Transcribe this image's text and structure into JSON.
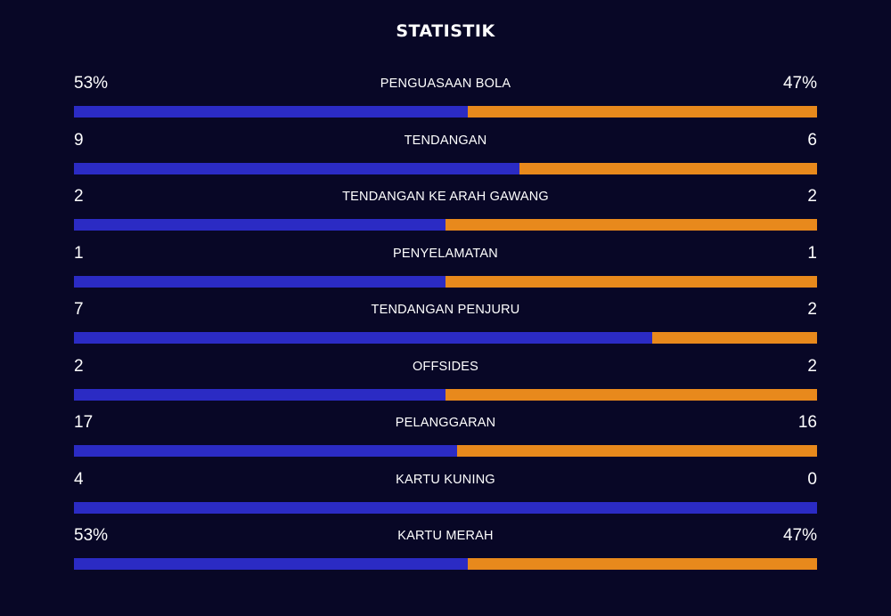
{
  "title": "STATISTIK",
  "colors": {
    "background": "#080726",
    "home": "#2b2bc4",
    "away": "#e8891c"
  },
  "stats": [
    {
      "label": "PENGUASAAN BOLA",
      "home": "53%",
      "away": "47%",
      "home_share": 0.53
    },
    {
      "label": "TENDANGAN",
      "home": "9",
      "away": "6",
      "home_share": 0.6
    },
    {
      "label": "TENDANGAN KE ARAH GAWANG",
      "home": "2",
      "away": "2",
      "home_share": 0.5
    },
    {
      "label": "PENYELAMATAN",
      "home": "1",
      "away": "1",
      "home_share": 0.5
    },
    {
      "label": "TENDANGAN PENJURU",
      "home": "7",
      "away": "2",
      "home_share": 0.778
    },
    {
      "label": "OFFSIDES",
      "home": "2",
      "away": "2",
      "home_share": 0.5
    },
    {
      "label": "PELANGGARAN",
      "home": "17",
      "away": "16",
      "home_share": 0.515
    },
    {
      "label": "KARTU KUNING",
      "home": "4",
      "away": "0",
      "home_share": 1.0
    },
    {
      "label": "KARTU MERAH",
      "home": "53%",
      "away": "47%",
      "home_share": 0.53
    }
  ]
}
